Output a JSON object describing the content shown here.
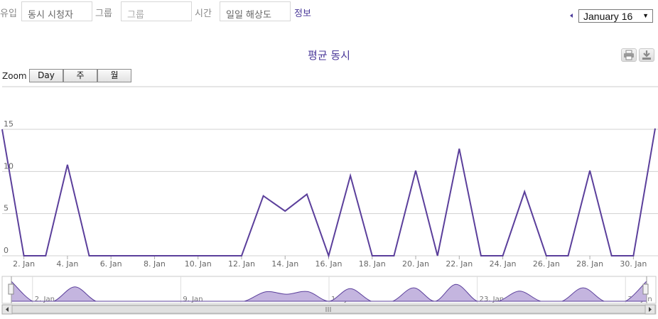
{
  "filters": {
    "type_label": "유입",
    "type_value": "동시 시청자",
    "group_label": "그룹",
    "group_placeholder": "그룹",
    "time_label": "시간",
    "time_value": "일일 해상도",
    "info_link": "정보"
  },
  "month_selector": {
    "selected": "January 16",
    "prev_icon": "triangle-left-icon"
  },
  "toolbar": {
    "print_icon": "printer-icon",
    "export_icon": "download-icon"
  },
  "zoom": {
    "label": "Zoom",
    "buttons": [
      "Day",
      "주",
      "월"
    ]
  },
  "colors": {
    "line": "#5b3f9b",
    "navigator_fill": "#c4b5df",
    "accent": "#4b3a9a"
  },
  "chart_data": {
    "type": "line",
    "title": "평균 동시",
    "x": [
      "1. Jan",
      "2. Jan",
      "3. Jan",
      "4. Jan",
      "5. Jan",
      "6. Jan",
      "7. Jan",
      "8. Jan",
      "9. Jan",
      "10. Jan",
      "11. Jan",
      "12. Jan",
      "13. Jan",
      "14. Jan",
      "15. Jan",
      "16. Jan",
      "17. Jan",
      "18. Jan",
      "19. Jan",
      "20. Jan",
      "21. Jan",
      "22. Jan",
      "23. Jan",
      "24. Jan",
      "25. Jan",
      "26. Jan",
      "27. Jan",
      "28. Jan",
      "29. Jan",
      "30. Jan",
      "31. Jan"
    ],
    "series": [
      {
        "values": [
          15,
          0,
          0,
          10.8,
          0,
          0,
          0,
          0,
          0,
          0,
          0,
          0,
          7.1,
          5.3,
          7.3,
          0,
          9.5,
          0,
          0,
          10.1,
          0,
          12.7,
          0,
          0,
          7.6,
          0,
          0,
          10.1,
          0,
          0,
          15.1
        ]
      }
    ],
    "y_ticks": [
      0,
      5,
      10,
      15
    ],
    "x_tick_labels": [
      "2. Jan",
      "4. Jan",
      "6. Jan",
      "8. Jan",
      "10. Jan",
      "12. Jan",
      "14. Jan",
      "16. Jan",
      "18. Jan",
      "20. Jan",
      "22. Jan",
      "24. Jan",
      "26. Jan",
      "28. Jan",
      "30. Jan"
    ],
    "ylim": [
      0,
      15
    ],
    "grid": true,
    "navigator": {
      "tick_labels": [
        "2. Jan",
        "9. Jan",
        "16. Jan",
        "23. Jan",
        "30. Jan"
      ]
    }
  }
}
